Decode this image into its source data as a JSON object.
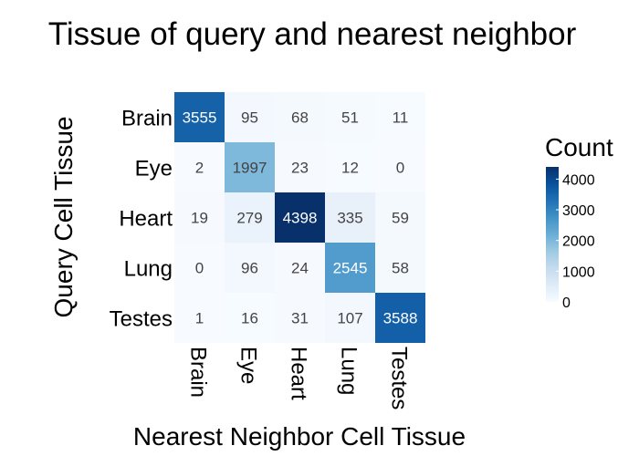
{
  "chart_data": {
    "type": "heatmap",
    "title": "Tissue of query and nearest neighbor",
    "xlabel": "Nearest Neighbor Cell Tissue",
    "ylabel": "Query Cell Tissue",
    "x_categories": [
      "Brain",
      "Eye",
      "Heart",
      "Lung",
      "Testes"
    ],
    "y_categories": [
      "Brain",
      "Eye",
      "Heart",
      "Lung",
      "Testes"
    ],
    "values": [
      [
        3555,
        95,
        68,
        51,
        11
      ],
      [
        2,
        1997,
        23,
        12,
        0
      ],
      [
        19,
        279,
        4398,
        335,
        59
      ],
      [
        0,
        96,
        24,
        2545,
        58
      ],
      [
        1,
        16,
        31,
        107,
        3588
      ]
    ],
    "legend": {
      "title": "Count",
      "placement": "right",
      "ticks": [
        0,
        1000,
        2000,
        3000,
        4000
      ],
      "range": [
        0,
        4398
      ]
    },
    "colormap": {
      "low": "#f7fbff",
      "high": "#08306b",
      "stops": [
        "#f7fbff",
        "#deebf7",
        "#c6dbef",
        "#9ecae1",
        "#6baed6",
        "#4292c6",
        "#2171b5",
        "#08519c",
        "#08306b"
      ]
    }
  }
}
